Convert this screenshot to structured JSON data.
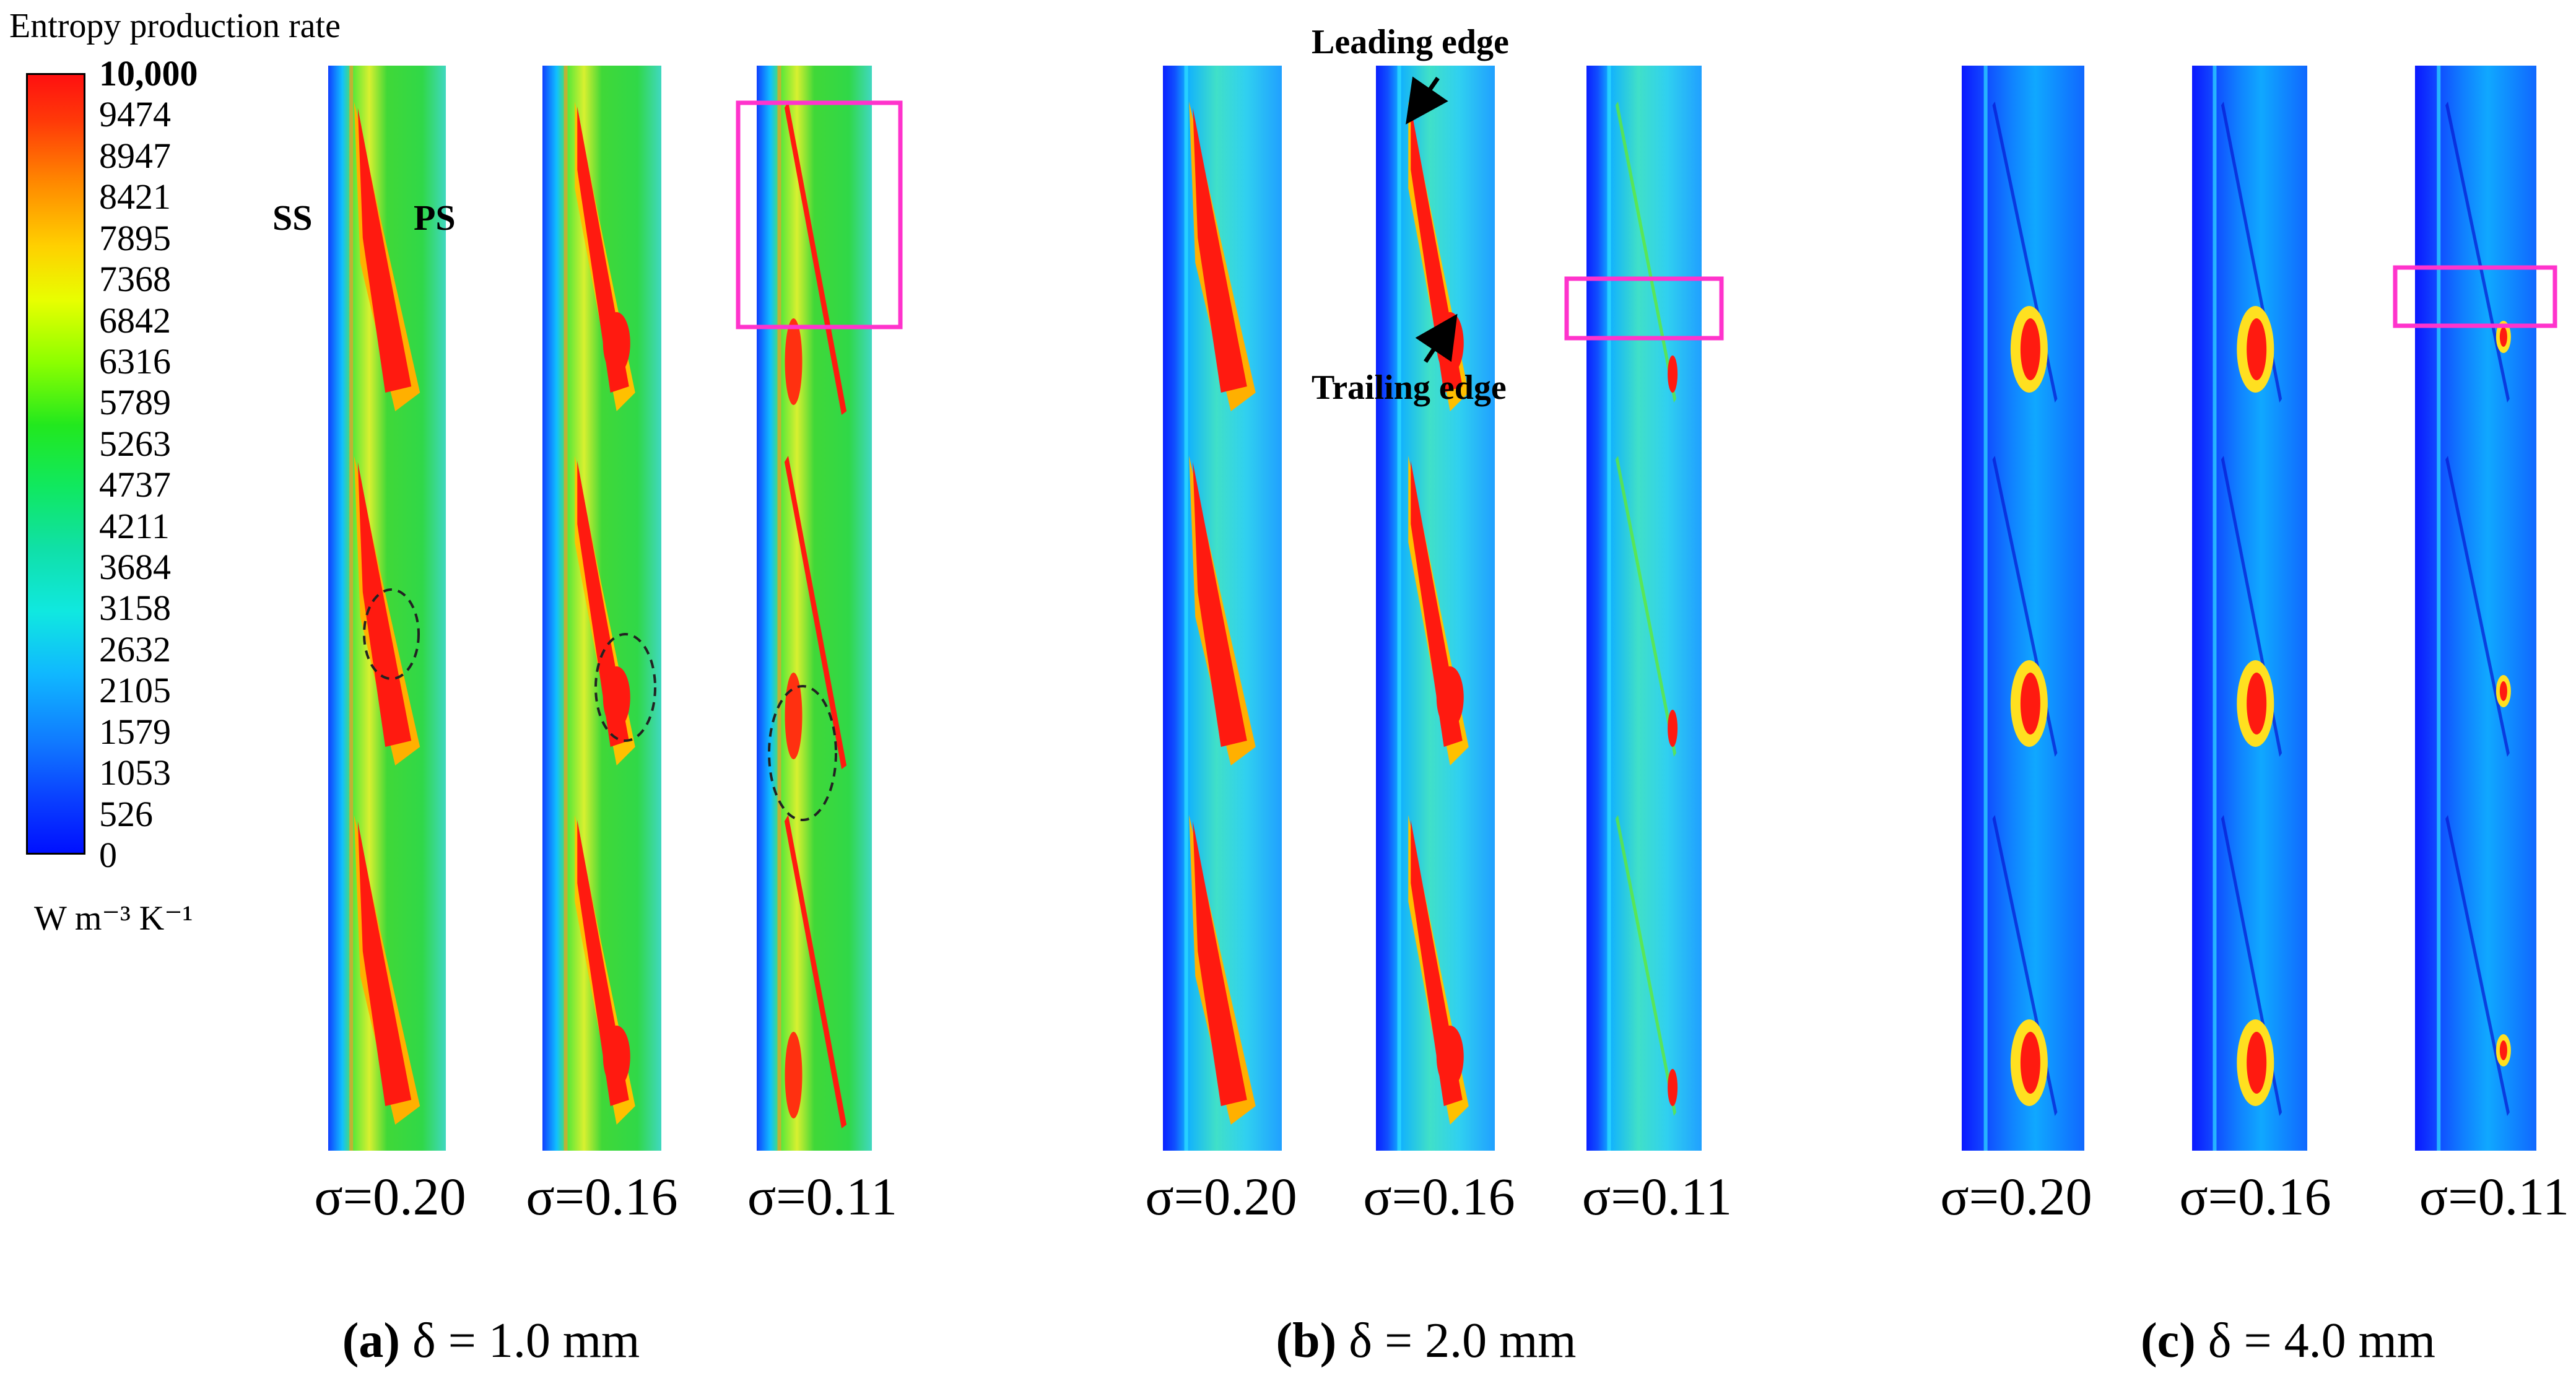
{
  "legend": {
    "title": "Entropy production rate",
    "ticks": [
      "10,000",
      "9474",
      "8947",
      "8421",
      "7895",
      "7368",
      "6842",
      "6316",
      "5789",
      "5263",
      "4737",
      "4211",
      "3684",
      "3158",
      "2632",
      "2105",
      "1579",
      "1053",
      "526",
      "0"
    ],
    "unit": "W m⁻³ K⁻¹",
    "colors": [
      "#ff1010",
      "#ff8a00",
      "#e8ff00",
      "#22e81e",
      "#10e8e0",
      "#1078ff",
      "#0010ff"
    ]
  },
  "panels": [
    {
      "caption_letter": "(a)",
      "caption_rest": " δ = 1.0 mm",
      "strips": [
        {
          "sigma": "σ=0.20"
        },
        {
          "sigma": "σ=0.16"
        },
        {
          "sigma": "σ=0.11"
        }
      ]
    },
    {
      "caption_letter": "(b)",
      "caption_rest": " δ = 2.0 mm",
      "strips": [
        {
          "sigma": "σ=0.20"
        },
        {
          "sigma": "σ=0.16"
        },
        {
          "sigma": "σ=0.11"
        }
      ]
    },
    {
      "caption_letter": "(c)",
      "caption_rest": " δ = 4.0 mm",
      "strips": [
        {
          "sigma": "σ=0.20"
        },
        {
          "sigma": "σ=0.16"
        },
        {
          "sigma": "σ=0.11"
        }
      ]
    }
  ],
  "annotations": {
    "ss": "SS",
    "ps": "PS",
    "leading_edge": "Leading edge",
    "trailing_edge": "Trailing edge"
  },
  "colors": {
    "highlight_box": "#ff33cc",
    "high": "#ff1a10",
    "green": "#3ddc30",
    "cyan": "#30d8f0",
    "blue": "#1030ff"
  }
}
